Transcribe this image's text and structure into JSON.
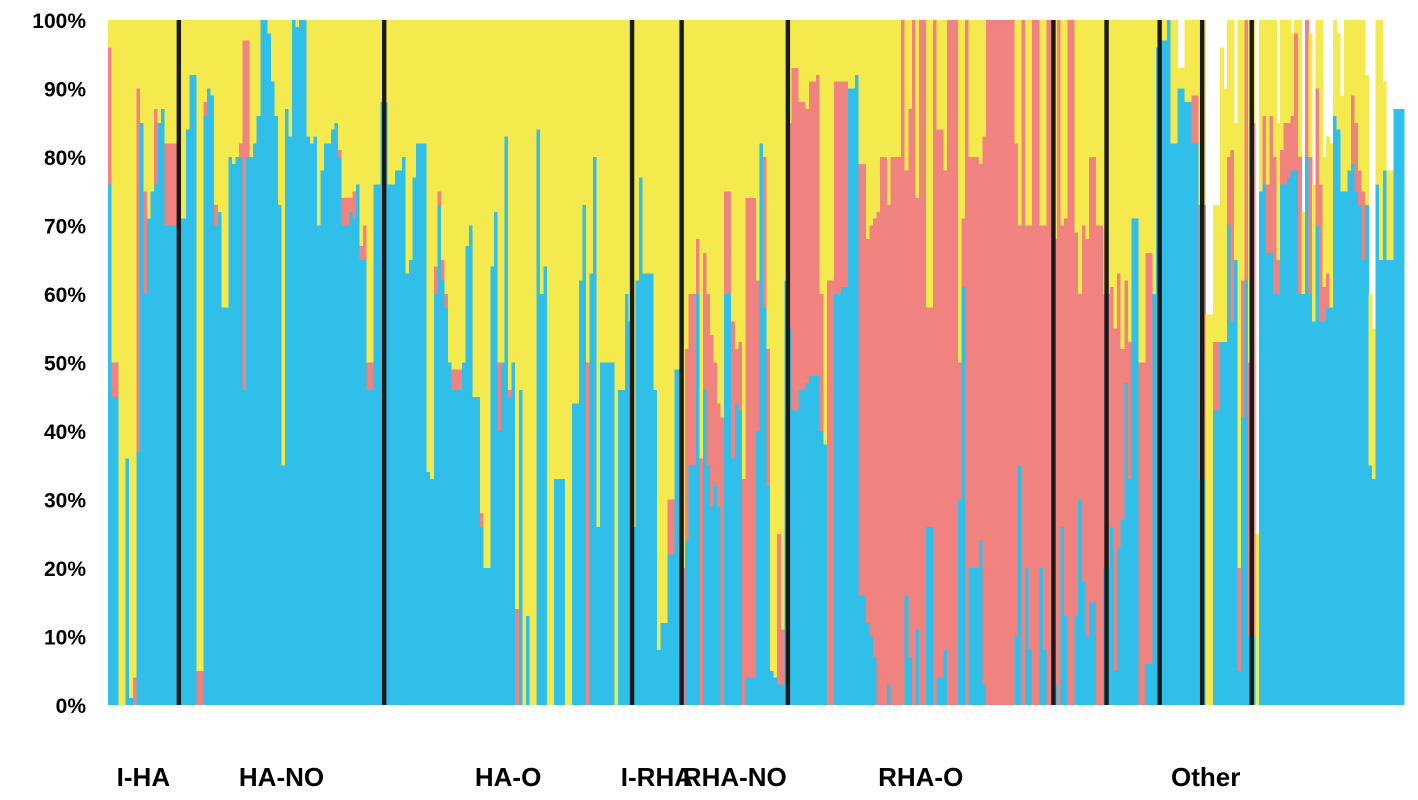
{
  "chart_data": {
    "type": "bar",
    "stacked": true,
    "normalized": true,
    "title": "",
    "xlabel": "",
    "ylabel": "",
    "ylim": [
      0,
      100
    ],
    "y_ticks": [
      "0%",
      "10%",
      "20%",
      "30%",
      "40%",
      "50%",
      "60%",
      "70%",
      "80%",
      "90%",
      "100%"
    ],
    "colors": {
      "cluster1": "#2fbfe9",
      "cluster2": "#f08380",
      "cluster3": "#f4ea4e",
      "divider": "#1a1a1a"
    },
    "series": [
      {
        "values": [
          76,
          45,
          45,
          0,
          0,
          36,
          1,
          0,
          37,
          85,
          60,
          71,
          75,
          76,
          85,
          87,
          70,
          70,
          70,
          70,
          71,
          71,
          84,
          92,
          92,
          0,
          0,
          86,
          90,
          89,
          70,
          72,
          58,
          58,
          80,
          79,
          80,
          80,
          46,
          80,
          80,
          82,
          86,
          100,
          100,
          98,
          91,
          86,
          73,
          35,
          87,
          83,
          100,
          99,
          100,
          100,
          83,
          82,
          83,
          70,
          78,
          82,
          82,
          84,
          85,
          80,
          70,
          70,
          72,
          71,
          76,
          65,
          65,
          46,
          46,
          76,
          76,
          88,
          88,
          76,
          76,
          78,
          78,
          80,
          63,
          65,
          77,
          82,
          82,
          82,
          34,
          33,
          60,
          73,
          62,
          58,
          50,
          46,
          46,
          46,
          50,
          67,
          70,
          45,
          45,
          26,
          20,
          20,
          64,
          72,
          40,
          50,
          83,
          45,
          50,
          0,
          46,
          0,
          13,
          0,
          0,
          84,
          60,
          64,
          0,
          0,
          33,
          33,
          33,
          0,
          0,
          44,
          44,
          62,
          73,
          0,
          63,
          80,
          26,
          50,
          50,
          50,
          50,
          0,
          46,
          46,
          60,
          56,
          26,
          62,
          77,
          63,
          63,
          63,
          46,
          8,
          12,
          12,
          22,
          22,
          49,
          49,
          0,
          24,
          35,
          35,
          60,
          0,
          46,
          35,
          29,
          32,
          29,
          0,
          60,
          60,
          36,
          44,
          43,
          0,
          4,
          4,
          4,
          40,
          82,
          58,
          32,
          5,
          4,
          3,
          3,
          62,
          55,
          43,
          43,
          46,
          46,
          47,
          48,
          48,
          48,
          40,
          38,
          0,
          0,
          60,
          60,
          61,
          61,
          90,
          90,
          92,
          16,
          16,
          12,
          10,
          7,
          0,
          0,
          0,
          3,
          0,
          0,
          0,
          0,
          16,
          7,
          0,
          11,
          0,
          0,
          26,
          26,
          0,
          4,
          4,
          8,
          0,
          0,
          0,
          30,
          61,
          0,
          20,
          20,
          20,
          24,
          3,
          0,
          0,
          0,
          0,
          0,
          0,
          0,
          0,
          10,
          35,
          0,
          20,
          8,
          0,
          0,
          20,
          8,
          0,
          0,
          3,
          0,
          26,
          13,
          0,
          0,
          13,
          30,
          18,
          10,
          15,
          15,
          0,
          0,
          20,
          20,
          26,
          5,
          23,
          27,
          47,
          33,
          71,
          71,
          0,
          0,
          6,
          6,
          60,
          96,
          97,
          97,
          100,
          82,
          82,
          90,
          90,
          88,
          88,
          82,
          82,
          33,
          33,
          0,
          0,
          43,
          43,
          53,
          53,
          70,
          56,
          65,
          5,
          42,
          62,
          10,
          10,
          0,
          75,
          76,
          66,
          66,
          60,
          60,
          76,
          76,
          77,
          78,
          78,
          60,
          60,
          80,
          60,
          56,
          70,
          56,
          56,
          58,
          58,
          86,
          84,
          75,
          75,
          78,
          79,
          75,
          73,
          65,
          73,
          35,
          33,
          76,
          65,
          78,
          65,
          65,
          87,
          87,
          87
        ],
        "color": "#2fbfe9"
      },
      {
        "values": [
          20,
          5,
          5,
          0,
          0,
          0,
          0,
          4,
          53,
          0,
          15,
          0,
          0,
          11,
          0,
          0,
          12,
          12,
          12,
          12,
          0,
          0,
          0,
          0,
          0,
          5,
          5,
          2,
          0,
          0,
          3,
          0,
          0,
          0,
          0,
          0,
          0,
          2,
          51,
          17,
          0,
          0,
          0,
          0,
          0,
          0,
          0,
          0,
          0,
          0,
          0,
          0,
          0,
          0,
          0,
          0,
          0,
          0,
          0,
          0,
          0,
          0,
          0,
          0,
          0,
          1,
          4,
          4,
          2,
          4,
          0,
          2,
          5,
          4,
          4,
          0,
          0,
          0,
          0,
          0,
          0,
          0,
          0,
          0,
          0,
          0,
          0,
          0,
          0,
          0,
          0,
          0,
          4,
          2,
          3,
          2,
          0,
          3,
          3,
          3,
          0,
          0,
          0,
          0,
          0,
          2,
          0,
          0,
          0,
          0,
          10,
          0,
          0,
          1,
          0,
          14,
          0,
          0,
          0,
          0,
          0,
          0,
          0,
          0,
          0,
          0,
          0,
          0,
          0,
          0,
          0,
          0,
          0,
          0,
          0,
          50,
          0,
          0,
          0,
          0,
          0,
          0,
          0,
          0,
          0,
          0,
          0,
          0,
          0,
          0,
          0,
          0,
          0,
          0,
          0,
          0,
          0,
          0,
          8,
          8,
          0,
          0,
          20,
          28,
          25,
          25,
          8,
          36,
          20,
          25,
          25,
          18,
          15,
          42,
          15,
          15,
          20,
          8,
          10,
          33,
          70,
          70,
          70,
          22,
          0,
          22,
          20,
          0,
          0,
          22,
          8,
          0,
          30,
          50,
          50,
          42,
          42,
          40,
          43,
          43,
          44,
          20,
          0,
          62,
          62,
          31,
          31,
          30,
          30,
          0,
          0,
          0,
          63,
          63,
          56,
          60,
          64,
          72,
          80,
          80,
          70,
          80,
          80,
          80,
          100,
          62,
          80,
          100,
          63,
          100,
          100,
          32,
          32,
          100,
          80,
          80,
          70,
          100,
          100,
          100,
          20,
          10,
          100,
          60,
          60,
          60,
          55,
          80,
          100,
          100,
          100,
          100,
          100,
          100,
          100,
          100,
          72,
          35,
          100,
          50,
          62,
          100,
          100,
          50,
          62,
          100,
          100,
          65,
          100,
          44,
          58,
          100,
          100,
          56,
          30,
          52,
          58,
          65,
          65,
          70,
          70,
          40,
          40,
          35,
          50,
          40,
          25,
          15,
          20,
          0,
          0,
          50,
          50,
          60,
          60,
          0,
          0,
          0,
          0,
          0,
          0,
          0,
          0,
          0,
          0,
          0,
          7,
          7,
          40,
          40,
          0,
          0,
          10,
          10,
          0,
          0,
          10,
          25,
          0,
          15,
          20,
          40,
          40,
          75,
          0,
          0,
          10,
          10,
          20,
          20,
          5,
          5,
          9,
          8,
          8,
          20,
          20,
          0,
          20,
          20,
          0,
          20,
          20,
          5,
          5,
          0,
          0,
          0,
          0,
          0,
          0,
          10,
          10,
          5,
          10,
          0,
          0,
          0,
          0,
          0,
          0,
          0,
          0,
          0
        ],
        "color": "#f08380"
      },
      {
        "values": [
          4,
          50,
          50,
          100,
          100,
          64,
          99,
          96,
          10,
          15,
          25,
          29,
          25,
          13,
          15,
          13,
          18,
          18,
          18,
          18,
          29,
          29,
          16,
          8,
          8,
          95,
          95,
          12,
          10,
          11,
          27,
          28,
          42,
          42,
          20,
          21,
          20,
          18,
          3,
          3,
          20,
          18,
          14,
          0,
          0,
          2,
          9,
          14,
          27,
          65,
          13,
          17,
          0,
          1,
          0,
          0,
          17,
          18,
          17,
          30,
          22,
          18,
          18,
          16,
          15,
          19,
          26,
          26,
          26,
          25,
          24,
          33,
          30,
          50,
          50,
          24,
          24,
          12,
          12,
          24,
          24,
          22,
          22,
          20,
          37,
          35,
          23,
          18,
          18,
          18,
          66,
          67,
          36,
          25,
          35,
          40,
          50,
          51,
          51,
          51,
          50,
          33,
          30,
          55,
          55,
          72,
          80,
          80,
          36,
          28,
          50,
          50,
          17,
          54,
          50,
          86,
          54,
          100,
          87,
          100,
          100,
          16,
          40,
          36,
          100,
          100,
          67,
          67,
          67,
          100,
          100,
          56,
          56,
          38,
          27,
          50,
          37,
          20,
          74,
          50,
          50,
          50,
          50,
          100,
          54,
          54,
          40,
          44,
          74,
          38,
          23,
          37,
          37,
          37,
          54,
          92,
          88,
          88,
          70,
          70,
          51,
          51,
          80,
          48,
          40,
          40,
          32,
          64,
          34,
          40,
          46,
          64,
          65,
          58,
          25,
          25,
          44,
          48,
          47,
          67,
          26,
          26,
          26,
          38,
          18,
          20,
          48,
          95,
          96,
          75,
          89,
          38,
          15,
          7,
          7,
          12,
          12,
          13,
          9,
          9,
          8,
          40,
          62,
          38,
          38,
          9,
          9,
          9,
          9,
          10,
          10,
          8,
          21,
          21,
          32,
          30,
          29,
          28,
          20,
          20,
          27,
          20,
          20,
          20,
          0,
          22,
          13,
          0,
          26,
          0,
          0,
          42,
          42,
          0,
          16,
          16,
          22,
          0,
          0,
          0,
          50,
          29,
          0,
          20,
          20,
          20,
          21,
          17,
          0,
          0,
          0,
          0,
          0,
          0,
          0,
          0,
          18,
          30,
          0,
          30,
          30,
          0,
          0,
          30,
          30,
          0,
          0,
          32,
          0,
          30,
          29,
          0,
          0,
          31,
          40,
          30,
          32,
          20,
          20,
          30,
          30,
          40,
          40,
          39,
          45,
          37,
          48,
          38,
          47,
          29,
          29,
          50,
          50,
          34,
          34,
          40,
          4,
          3,
          3,
          0,
          18,
          18,
          3,
          3,
          12,
          12,
          11,
          11,
          27,
          27,
          57,
          57,
          20,
          20,
          43,
          37,
          27,
          19,
          20,
          80,
          43,
          20,
          50,
          50,
          25,
          25,
          24,
          24,
          24,
          20,
          20,
          19,
          19,
          19,
          12,
          12,
          22,
          12,
          14,
          18,
          20,
          20,
          31,
          19,
          20,
          24,
          24,
          14,
          14,
          25,
          27,
          35,
          27,
          50,
          52,
          19,
          25,
          22,
          35,
          35,
          13,
          13,
          13
        ],
        "color": "#f4ea4e"
      }
    ],
    "dividers_after_bar": [
      20,
      78,
      148,
      162,
      192,
      267,
      282,
      297,
      309,
      323
    ],
    "groups": [
      {
        "label": "I-HA",
        "start": 0,
        "end": 20
      },
      {
        "label": "HA-NO",
        "start": 20,
        "end": 78
      },
      {
        "label": "HA-O",
        "start": 78,
        "end": 148
      },
      {
        "label": "I-RHA",
        "start": 148,
        "end": 162
      },
      {
        "label": "RHA-NO",
        "start": 162,
        "end": 192
      },
      {
        "label": "RHA-O",
        "start": 192,
        "end": 267
      },
      {
        "label": "",
        "start": 267,
        "end": 282
      },
      {
        "label": "Other",
        "start": 282,
        "end": 338
      }
    ],
    "grid": false,
    "legend": "none"
  }
}
